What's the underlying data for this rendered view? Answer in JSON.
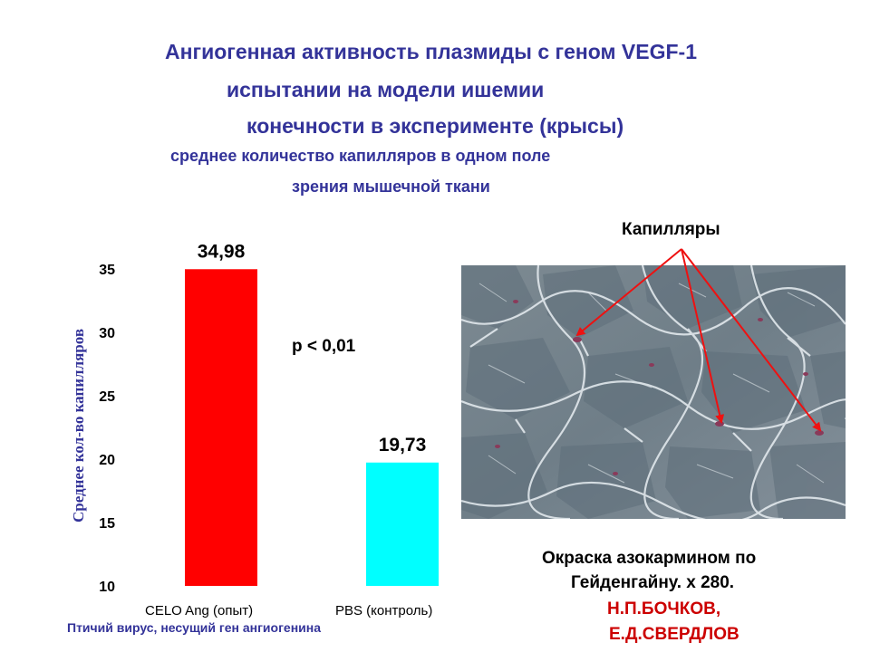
{
  "header": {
    "title_line1": "Ангиогенная активность плазмиды  с геном VEGF-1",
    "title_line2": "испытании на модели ишемии",
    "title_line3": "конечности в эксперименте (крысы)",
    "subtitle_line1": "среднее количество капилляров в одном поле",
    "subtitle_line2": "зрения мышечной ткани"
  },
  "chart_data": {
    "type": "bar",
    "categories": [
      "CELO  Ang (опыт)",
      "PBS (контроль)"
    ],
    "values": [
      34.98,
      19.73
    ],
    "value_labels": [
      "34,98",
      "19,73"
    ],
    "colors": [
      "#ff0000",
      "#00ffff"
    ],
    "ylabel": "Среднее кол-во капилляров",
    "ylim": [
      10,
      35
    ],
    "yticks": [
      35,
      30,
      25,
      20,
      15,
      10
    ],
    "annotation": "p < 0,01",
    "footnote": "Птичий вирус, несущий ген ангиогенина",
    "grid": false,
    "legend": "none"
  },
  "micrograph": {
    "label": "Капилляры",
    "caption_line1": "Окраска азокармином по",
    "caption_line2": "Гейденгайну. х 280.",
    "author_line1": "Н.П.БОЧКОВ,",
    "author_line2": "Е.Д.СВЕРДЛОВ",
    "arrow_color": "#ee1111"
  }
}
